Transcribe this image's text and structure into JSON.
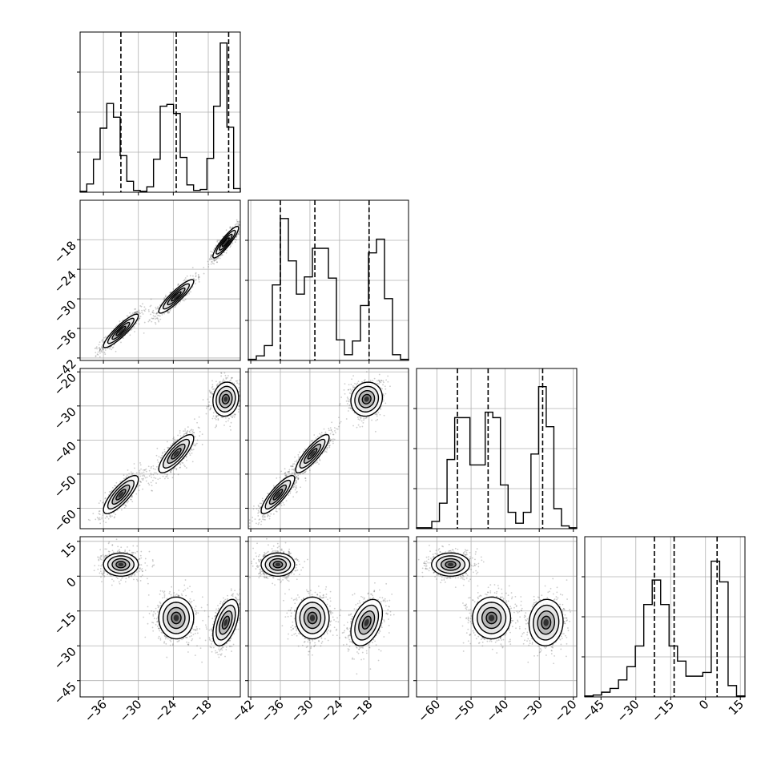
{
  "figure": {
    "background": "#ffffff",
    "line_color": "#000000",
    "grid_color": "#b0b0b0",
    "scatter_color": "#555555",
    "contour_fills": [
      "#ffffff",
      "#e3e3e3",
      "#b4b4b4",
      "#787878",
      "#303030"
    ]
  },
  "chart_data": {
    "type": "corner",
    "grid": true,
    "n_params": 4,
    "parameters": [
      {
        "range": [
          -40,
          -12.5
        ],
        "ticks": [
          -36,
          -30,
          -24,
          -18
        ],
        "tick_labels": [
          "−36",
          "−30",
          "−24",
          "−18"
        ],
        "quantiles": [
          -33,
          -23.5,
          -14.5
        ],
        "hist": {
          "range": [
            -40,
            -12.5
          ],
          "ylim": [
            0,
            0.175
          ],
          "density": [
            0.001,
            0.009,
            0.036,
            0.07,
            0.097,
            0.082,
            0.04,
            0.012,
            0.002,
            0.001,
            0.006,
            0.036,
            0.094,
            0.096,
            0.086,
            0.038,
            0.008,
            0.002,
            0.003,
            0.037,
            0.094,
            0.163,
            0.071,
            0.004
          ]
        }
      },
      {
        "range": [
          -42.5,
          -10
        ],
        "ticks": [
          -42,
          -36,
          -30,
          -24,
          -18
        ],
        "tick_labels": [
          "−42",
          "−36",
          "−30",
          "−24",
          "−18"
        ],
        "quantiles": [
          -36,
          -29,
          -18
        ],
        "hist": {
          "range": [
            -42.5,
            -10
          ],
          "ylim": [
            0,
            0.14
          ],
          "density": [
            0.001,
            0.004,
            0.013,
            0.066,
            0.124,
            0.087,
            0.058,
            0.073,
            0.098,
            0.098,
            0.072,
            0.018,
            0.005,
            0.017,
            0.048,
            0.094,
            0.106,
            0.054,
            0.005,
            0.001
          ]
        }
      },
      {
        "range": [
          -66,
          -19
        ],
        "ticks": [
          -60,
          -50,
          -40,
          -30,
          -20
        ],
        "tick_labels": [
          "−60",
          "−50",
          "−40",
          "−30",
          "−20"
        ],
        "quantiles": [
          -54,
          -45,
          -29
        ],
        "hist": {
          "range": [
            -66,
            -19
          ],
          "ylim": [
            0,
            0.088
          ],
          "density": [
            0.0005,
            0.0005,
            0.004,
            0.014,
            0.038,
            0.061,
            0.061,
            0.035,
            0.035,
            0.064,
            0.061,
            0.024,
            0.009,
            0.003,
            0.009,
            0.041,
            0.078,
            0.056,
            0.011,
            0.0015,
            0.0005
          ]
        }
      },
      {
        "range": [
          -52,
          17
        ],
        "ticks": [
          -45,
          -30,
          -15,
          0,
          15
        ],
        "tick_labels": [
          "−45",
          "−30",
          "−15",
          "0",
          "15"
        ],
        "quantiles": [
          -22,
          -13.5,
          5
        ],
        "hist": {
          "range": [
            -52,
            17
          ],
          "ylim": [
            0,
            0.085
          ],
          "density": [
            0.0005,
            0.001,
            0.0025,
            0.0045,
            0.009,
            0.016,
            0.027,
            0.049,
            0.062,
            0.049,
            0.027,
            0.019,
            0.011,
            0.011,
            0.013,
            0.072,
            0.061,
            0.006,
            0.0005
          ]
        }
      }
    ],
    "clusters": [
      {
        "mean": [
          -33,
          -36.5,
          -56,
          5
        ],
        "sd": [
          1.5,
          1.7,
          2.8,
          2.5
        ],
        "rho": [
          [
            1,
            0.9,
            0.8,
            0
          ],
          [
            0.9,
            1,
            0.85,
            0
          ],
          [
            0.8,
            0.85,
            1,
            0
          ],
          [
            0,
            0,
            0,
            1
          ]
        ],
        "n": 700
      },
      {
        "mean": [
          -23.5,
          -29.5,
          -44,
          -18
        ],
        "sd": [
          1.5,
          1.7,
          2.8,
          4.5
        ],
        "rho": [
          [
            1,
            0.9,
            0.8,
            0
          ],
          [
            0.9,
            1,
            0.85,
            0
          ],
          [
            0.8,
            0.85,
            1,
            0
          ],
          [
            0,
            0,
            0,
            1
          ]
        ],
        "n": 700
      },
      {
        "mean": [
          -15,
          -18.5,
          -28,
          -20
        ],
        "sd": [
          1.1,
          1.6,
          2.5,
          5.0
        ],
        "rho": [
          [
            1,
            0.9,
            0.1,
            0.5
          ],
          [
            0.9,
            1,
            0.1,
            0.4
          ],
          [
            0.1,
            0.1,
            1,
            0.05
          ],
          [
            0.5,
            0.4,
            0.05,
            1
          ]
        ],
        "n": 650
      }
    ],
    "contour_levels_sigma": [
      0.55,
      1.0,
      1.5,
      2.0
    ]
  }
}
